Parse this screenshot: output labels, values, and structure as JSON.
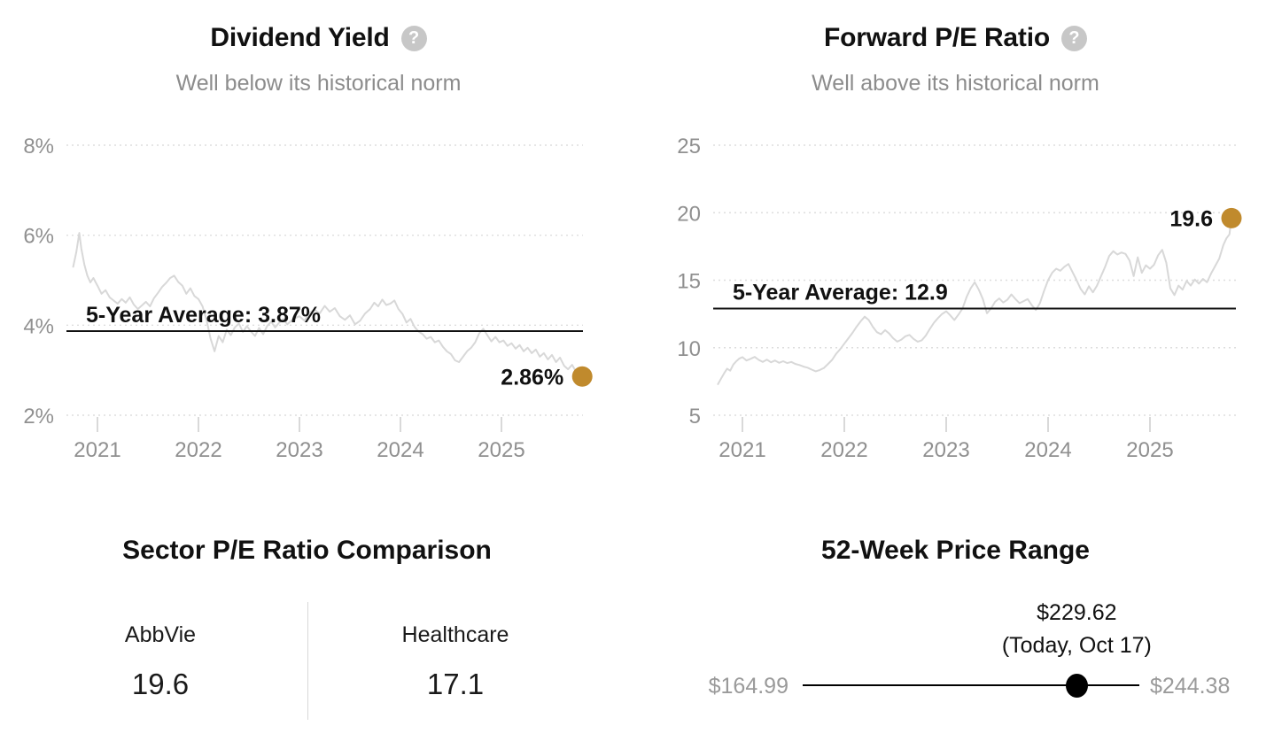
{
  "colors": {
    "accent": "#C08A2D",
    "series": "#D8D8D8",
    "grid": "#DEDEDE",
    "tick_text": "#909090",
    "subtitle_text": "#8C8C8C",
    "text": "#111111",
    "muted_label": "#9A9A9A"
  },
  "icons": {
    "help_glyph": "?"
  },
  "chart_data": [
    {
      "type": "line",
      "title": "Dividend Yield",
      "subtitle": "Well below its historical norm",
      "legend_position": "none",
      "grid": "horizontal-dotted",
      "xlim": [
        2020.76,
        2025.8
      ],
      "ylim": [
        2,
        8
      ],
      "yticks": [
        {
          "value": 8,
          "label": "8%"
        },
        {
          "value": 6,
          "label": "6%"
        },
        {
          "value": 4,
          "label": "4%"
        },
        {
          "value": 2,
          "label": "2%"
        }
      ],
      "xticks": [
        {
          "value": 2021,
          "label": "2021"
        },
        {
          "value": 2022,
          "label": "2022"
        },
        {
          "value": 2023,
          "label": "2023"
        },
        {
          "value": 2024,
          "label": "2024"
        },
        {
          "value": 2025,
          "label": "2025"
        }
      ],
      "average": {
        "value": 3.87,
        "label": "5-Year Average: 3.87%"
      },
      "current": {
        "x": 2025.8,
        "value": 2.86,
        "label": "2.86%"
      },
      "points": [
        [
          2020.76,
          5.3
        ],
        [
          2020.79,
          5.62
        ],
        [
          2020.82,
          6.05
        ],
        [
          2020.84,
          5.7
        ],
        [
          2020.87,
          5.35
        ],
        [
          2020.9,
          5.1
        ],
        [
          2020.93,
          4.95
        ],
        [
          2020.96,
          5.05
        ],
        [
          2021.0,
          4.88
        ],
        [
          2021.04,
          4.7
        ],
        [
          2021.08,
          4.78
        ],
        [
          2021.12,
          4.62
        ],
        [
          2021.16,
          4.55
        ],
        [
          2021.2,
          4.48
        ],
        [
          2021.24,
          4.58
        ],
        [
          2021.28,
          4.5
        ],
        [
          2021.32,
          4.62
        ],
        [
          2021.36,
          4.46
        ],
        [
          2021.4,
          4.36
        ],
        [
          2021.44,
          4.44
        ],
        [
          2021.48,
          4.52
        ],
        [
          2021.52,
          4.42
        ],
        [
          2021.56,
          4.6
        ],
        [
          2021.6,
          4.72
        ],
        [
          2021.64,
          4.85
        ],
        [
          2021.68,
          4.94
        ],
        [
          2021.72,
          5.05
        ],
        [
          2021.76,
          5.1
        ],
        [
          2021.8,
          4.96
        ],
        [
          2021.84,
          4.88
        ],
        [
          2021.88,
          4.7
        ],
        [
          2021.92,
          4.82
        ],
        [
          2021.96,
          4.65
        ],
        [
          2022.0,
          4.58
        ],
        [
          2022.04,
          4.42
        ],
        [
          2022.08,
          4.12
        ],
        [
          2022.12,
          3.7
        ],
        [
          2022.16,
          3.42
        ],
        [
          2022.2,
          3.76
        ],
        [
          2022.24,
          3.62
        ],
        [
          2022.28,
          3.9
        ],
        [
          2022.32,
          3.78
        ],
        [
          2022.36,
          3.95
        ],
        [
          2022.4,
          4.04
        ],
        [
          2022.44,
          3.85
        ],
        [
          2022.48,
          3.98
        ],
        [
          2022.52,
          3.86
        ],
        [
          2022.56,
          3.76
        ],
        [
          2022.6,
          3.94
        ],
        [
          2022.64,
          3.8
        ],
        [
          2022.68,
          3.98
        ],
        [
          2022.72,
          4.08
        ],
        [
          2022.76,
          3.95
        ],
        [
          2022.8,
          4.06
        ],
        [
          2022.84,
          4.14
        ],
        [
          2022.88,
          4.02
        ],
        [
          2022.92,
          4.1
        ],
        [
          2022.96,
          4.16
        ],
        [
          2023.0,
          4.2
        ],
        [
          2023.05,
          4.1
        ],
        [
          2023.1,
          4.28
        ],
        [
          2023.15,
          4.34
        ],
        [
          2023.2,
          4.26
        ],
        [
          2023.25,
          4.43
        ],
        [
          2023.3,
          4.3
        ],
        [
          2023.35,
          4.38
        ],
        [
          2023.4,
          4.2
        ],
        [
          2023.45,
          4.12
        ],
        [
          2023.5,
          4.22
        ],
        [
          2023.55,
          4.02
        ],
        [
          2023.6,
          4.1
        ],
        [
          2023.65,
          4.26
        ],
        [
          2023.7,
          4.36
        ],
        [
          2023.74,
          4.5
        ],
        [
          2023.78,
          4.42
        ],
        [
          2023.82,
          4.57
        ],
        [
          2023.86,
          4.45
        ],
        [
          2023.9,
          4.48
        ],
        [
          2023.94,
          4.55
        ],
        [
          2023.98,
          4.36
        ],
        [
          2024.02,
          4.25
        ],
        [
          2024.06,
          4.06
        ],
        [
          2024.1,
          4.14
        ],
        [
          2024.14,
          3.96
        ],
        [
          2024.18,
          3.86
        ],
        [
          2024.22,
          3.8
        ],
        [
          2024.26,
          3.7
        ],
        [
          2024.3,
          3.74
        ],
        [
          2024.34,
          3.62
        ],
        [
          2024.38,
          3.66
        ],
        [
          2024.42,
          3.52
        ],
        [
          2024.46,
          3.42
        ],
        [
          2024.5,
          3.36
        ],
        [
          2024.54,
          3.22
        ],
        [
          2024.58,
          3.18
        ],
        [
          2024.62,
          3.3
        ],
        [
          2024.66,
          3.42
        ],
        [
          2024.7,
          3.5
        ],
        [
          2024.74,
          3.62
        ],
        [
          2024.78,
          3.82
        ],
        [
          2024.82,
          3.92
        ],
        [
          2024.86,
          3.78
        ],
        [
          2024.9,
          3.64
        ],
        [
          2024.94,
          3.74
        ],
        [
          2024.98,
          3.62
        ],
        [
          2025.02,
          3.66
        ],
        [
          2025.06,
          3.54
        ],
        [
          2025.1,
          3.6
        ],
        [
          2025.14,
          3.48
        ],
        [
          2025.18,
          3.56
        ],
        [
          2025.22,
          3.42
        ],
        [
          2025.26,
          3.5
        ],
        [
          2025.3,
          3.38
        ],
        [
          2025.34,
          3.46
        ],
        [
          2025.38,
          3.3
        ],
        [
          2025.42,
          3.38
        ],
        [
          2025.46,
          3.24
        ],
        [
          2025.5,
          3.34
        ],
        [
          2025.54,
          3.18
        ],
        [
          2025.58,
          3.28
        ],
        [
          2025.62,
          3.1
        ],
        [
          2025.66,
          3.02
        ],
        [
          2025.7,
          3.12
        ],
        [
          2025.74,
          2.96
        ],
        [
          2025.77,
          2.9
        ],
        [
          2025.8,
          2.86
        ]
      ]
    },
    {
      "type": "line",
      "title": "Forward P/E Ratio",
      "subtitle": "Well above its historical norm",
      "legend_position": "none",
      "grid": "horizontal-dotted",
      "xlim": [
        2020.76,
        2025.8
      ],
      "ylim": [
        5,
        25
      ],
      "yticks": [
        {
          "value": 25,
          "label": "25"
        },
        {
          "value": 20,
          "label": "20"
        },
        {
          "value": 15,
          "label": "15"
        },
        {
          "value": 10,
          "label": "10"
        },
        {
          "value": 5,
          "label": "5"
        }
      ],
      "xticks": [
        {
          "value": 2021,
          "label": "2021"
        },
        {
          "value": 2022,
          "label": "2022"
        },
        {
          "value": 2023,
          "label": "2023"
        },
        {
          "value": 2024,
          "label": "2024"
        },
        {
          "value": 2025,
          "label": "2025"
        }
      ],
      "average": {
        "value": 12.9,
        "label": "5-Year Average: 12.9"
      },
      "current": {
        "x": 2025.8,
        "value": 19.6,
        "label": "19.6"
      },
      "points": [
        [
          2020.76,
          7.3
        ],
        [
          2020.79,
          7.7
        ],
        [
          2020.82,
          8.1
        ],
        [
          2020.85,
          8.45
        ],
        [
          2020.88,
          8.3
        ],
        [
          2020.91,
          8.75
        ],
        [
          2020.94,
          9.0
        ],
        [
          2020.97,
          9.2
        ],
        [
          2021.0,
          9.3
        ],
        [
          2021.04,
          9.05
        ],
        [
          2021.08,
          9.18
        ],
        [
          2021.12,
          9.32
        ],
        [
          2021.16,
          9.1
        ],
        [
          2021.2,
          8.95
        ],
        [
          2021.24,
          9.12
        ],
        [
          2021.28,
          8.92
        ],
        [
          2021.32,
          9.05
        ],
        [
          2021.36,
          8.88
        ],
        [
          2021.4,
          9.0
        ],
        [
          2021.44,
          8.86
        ],
        [
          2021.48,
          8.95
        ],
        [
          2021.52,
          8.8
        ],
        [
          2021.56,
          8.72
        ],
        [
          2021.6,
          8.6
        ],
        [
          2021.64,
          8.52
        ],
        [
          2021.68,
          8.38
        ],
        [
          2021.72,
          8.25
        ],
        [
          2021.76,
          8.35
        ],
        [
          2021.8,
          8.5
        ],
        [
          2021.84,
          8.8
        ],
        [
          2021.88,
          9.1
        ],
        [
          2021.92,
          9.55
        ],
        [
          2021.96,
          9.9
        ],
        [
          2022.0,
          10.3
        ],
        [
          2022.04,
          10.7
        ],
        [
          2022.08,
          11.1
        ],
        [
          2022.12,
          11.55
        ],
        [
          2022.16,
          11.95
        ],
        [
          2022.2,
          12.3
        ],
        [
          2022.24,
          12.05
        ],
        [
          2022.28,
          11.55
        ],
        [
          2022.32,
          11.15
        ],
        [
          2022.36,
          11.0
        ],
        [
          2022.4,
          11.3
        ],
        [
          2022.44,
          11.05
        ],
        [
          2022.48,
          10.7
        ],
        [
          2022.52,
          10.45
        ],
        [
          2022.56,
          10.6
        ],
        [
          2022.6,
          10.85
        ],
        [
          2022.64,
          10.95
        ],
        [
          2022.68,
          10.65
        ],
        [
          2022.72,
          10.45
        ],
        [
          2022.76,
          10.55
        ],
        [
          2022.8,
          10.9
        ],
        [
          2022.84,
          11.4
        ],
        [
          2022.88,
          11.85
        ],
        [
          2022.92,
          12.2
        ],
        [
          2022.96,
          12.5
        ],
        [
          2023.0,
          12.7
        ],
        [
          2023.04,
          12.4
        ],
        [
          2023.08,
          12.05
        ],
        [
          2023.12,
          12.45
        ],
        [
          2023.16,
          12.9
        ],
        [
          2023.2,
          13.75
        ],
        [
          2023.24,
          14.4
        ],
        [
          2023.28,
          14.85
        ],
        [
          2023.32,
          14.3
        ],
        [
          2023.36,
          13.6
        ],
        [
          2023.4,
          12.55
        ],
        [
          2023.44,
          12.9
        ],
        [
          2023.48,
          13.4
        ],
        [
          2023.52,
          13.65
        ],
        [
          2023.56,
          13.35
        ],
        [
          2023.6,
          13.55
        ],
        [
          2023.64,
          13.95
        ],
        [
          2023.68,
          13.6
        ],
        [
          2023.72,
          13.3
        ],
        [
          2023.76,
          13.45
        ],
        [
          2023.8,
          13.6
        ],
        [
          2023.84,
          13.15
        ],
        [
          2023.88,
          12.8
        ],
        [
          2023.92,
          13.3
        ],
        [
          2023.96,
          14.2
        ],
        [
          2024.0,
          15.0
        ],
        [
          2024.04,
          15.55
        ],
        [
          2024.08,
          15.85
        ],
        [
          2024.12,
          15.7
        ],
        [
          2024.16,
          16.0
        ],
        [
          2024.2,
          16.2
        ],
        [
          2024.24,
          15.6
        ],
        [
          2024.28,
          15.0
        ],
        [
          2024.32,
          14.35
        ],
        [
          2024.36,
          13.95
        ],
        [
          2024.4,
          14.55
        ],
        [
          2024.44,
          14.1
        ],
        [
          2024.48,
          14.6
        ],
        [
          2024.52,
          15.3
        ],
        [
          2024.56,
          16.0
        ],
        [
          2024.6,
          16.8
        ],
        [
          2024.64,
          17.15
        ],
        [
          2024.68,
          16.9
        ],
        [
          2024.72,
          17.05
        ],
        [
          2024.76,
          16.95
        ],
        [
          2024.8,
          16.45
        ],
        [
          2024.84,
          15.3
        ],
        [
          2024.88,
          16.7
        ],
        [
          2024.92,
          15.55
        ],
        [
          2024.96,
          16.1
        ],
        [
          2025.0,
          15.85
        ],
        [
          2025.04,
          16.15
        ],
        [
          2025.08,
          16.85
        ],
        [
          2025.12,
          17.25
        ],
        [
          2025.16,
          16.3
        ],
        [
          2025.2,
          14.4
        ],
        [
          2025.24,
          13.9
        ],
        [
          2025.28,
          14.6
        ],
        [
          2025.32,
          14.3
        ],
        [
          2025.36,
          14.95
        ],
        [
          2025.4,
          14.6
        ],
        [
          2025.44,
          15.05
        ],
        [
          2025.48,
          14.75
        ],
        [
          2025.52,
          15.1
        ],
        [
          2025.56,
          14.85
        ],
        [
          2025.6,
          15.5
        ],
        [
          2025.64,
          16.05
        ],
        [
          2025.68,
          16.6
        ],
        [
          2025.72,
          17.6
        ],
        [
          2025.75,
          18.1
        ],
        [
          2025.78,
          18.4
        ],
        [
          2025.8,
          19.6
        ]
      ]
    },
    {
      "type": "table",
      "title": "Sector P/E Ratio Comparison",
      "columns": [
        {
          "label": "AbbVie",
          "value": "19.6"
        },
        {
          "label": "Healthcare",
          "value": "17.1"
        }
      ]
    },
    {
      "type": "range",
      "title": "52-Week Price Range",
      "min": {
        "label": "$164.99",
        "value": 164.99
      },
      "max": {
        "label": "$244.38",
        "value": 244.38
      },
      "current": {
        "label": "$229.62",
        "sublabel": "(Today, Oct 17)",
        "value": 229.62
      }
    }
  ]
}
